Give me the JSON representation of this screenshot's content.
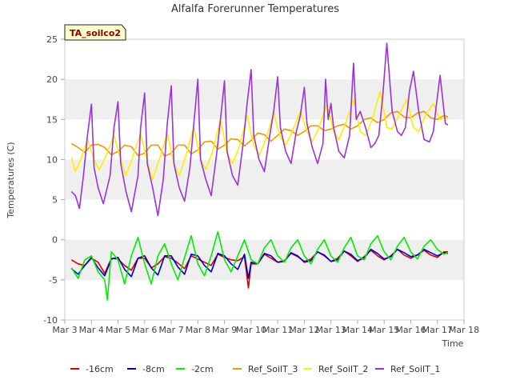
{
  "chart_data": {
    "type": "line",
    "title": "Alfalfa Forerunner Temperatures",
    "xlabel": "Time",
    "ylabel": "Temperatures (C)",
    "site_tag": "TA_soilco2",
    "xlim": [
      3,
      18
    ],
    "ylim": [
      -10,
      25
    ],
    "x_ticks": [
      3,
      4,
      5,
      6,
      7,
      8,
      9,
      10,
      11,
      12,
      13,
      14,
      15,
      16,
      17,
      18
    ],
    "x_tick_labels": [
      "Mar 3",
      "Mar 4",
      "Mar 5",
      "Mar 6",
      "Mar 7",
      "Mar 8",
      "Mar 9",
      "Mar 10",
      "Mar 11",
      "Mar 12",
      "Mar 13",
      "Mar 14",
      "Mar 15",
      "Mar 16",
      "Mar 17",
      "Mar 18"
    ],
    "y_ticks": [
      -10,
      -5,
      0,
      5,
      10,
      15,
      20,
      25
    ],
    "grid": "horizontal alternating bands",
    "legend_position": "bottom",
    "series": [
      {
        "name": "-16cm",
        "color": "#dd0000",
        "x": [
          3.25,
          3.5,
          3.75,
          4.0,
          4.25,
          4.5,
          4.75,
          5.0,
          5.25,
          5.5,
          5.75,
          6.0,
          6.25,
          6.5,
          6.75,
          7.0,
          7.25,
          7.5,
          7.75,
          8.0,
          8.25,
          8.5,
          8.75,
          9.0,
          9.25,
          9.5,
          9.75,
          9.9,
          10.0,
          10.25,
          10.5,
          10.75,
          11.0,
          11.25,
          11.5,
          11.75,
          12.0,
          12.25,
          12.5,
          12.75,
          13.0,
          13.25,
          13.5,
          13.75,
          14.0,
          14.25,
          14.5,
          14.75,
          15.0,
          15.25,
          15.5,
          15.75,
          16.0,
          16.25,
          16.5,
          16.75,
          17.0,
          17.25,
          17.4
        ],
        "y": [
          -2.5,
          -3.0,
          -3.2,
          -2.3,
          -2.8,
          -4.2,
          -2.3,
          -2.4,
          -3.2,
          -3.8,
          -2.3,
          -2.3,
          -3.5,
          -3.0,
          -2.1,
          -2.3,
          -2.9,
          -3.6,
          -2.0,
          -2.4,
          -2.8,
          -3.2,
          -1.8,
          -2.2,
          -2.5,
          -2.6,
          -2.1,
          -6.0,
          -3.0,
          -3.0,
          -1.8,
          -2.3,
          -2.8,
          -2.6,
          -1.7,
          -2.1,
          -2.7,
          -2.4,
          -1.5,
          -2.0,
          -2.7,
          -2.3,
          -1.4,
          -2.0,
          -2.7,
          -2.1,
          -1.3,
          -2.0,
          -2.5,
          -2.0,
          -1.2,
          -1.9,
          -2.3,
          -1.9,
          -1.3,
          -1.9,
          -2.2,
          -1.5,
          -1.5
        ]
      },
      {
        "name": "-8cm",
        "color": "#0000cc",
        "x": [
          3.25,
          3.5,
          3.75,
          4.0,
          4.25,
          4.5,
          4.75,
          5.0,
          5.25,
          5.5,
          5.75,
          6.0,
          6.25,
          6.5,
          6.75,
          7.0,
          7.25,
          7.5,
          7.75,
          8.0,
          8.25,
          8.5,
          8.75,
          9.0,
          9.25,
          9.5,
          9.75,
          9.9,
          10.0,
          10.25,
          10.5,
          10.75,
          11.0,
          11.25,
          11.5,
          11.75,
          12.0,
          12.25,
          12.5,
          12.75,
          13.0,
          13.25,
          13.5,
          13.75,
          14.0,
          14.25,
          14.5,
          14.75,
          15.0,
          15.25,
          15.5,
          15.75,
          16.0,
          16.25,
          16.5,
          16.75,
          17.0,
          17.25,
          17.4
        ],
        "y": [
          -3.6,
          -4.3,
          -3.2,
          -2.2,
          -3.5,
          -4.5,
          -2.4,
          -2.2,
          -3.7,
          -4.6,
          -2.3,
          -2.0,
          -3.5,
          -4.4,
          -2.0,
          -2.0,
          -3.4,
          -4.3,
          -1.8,
          -2.0,
          -3.2,
          -4.0,
          -1.7,
          -2.0,
          -3.0,
          -3.7,
          -1.8,
          -4.8,
          -2.8,
          -3.0,
          -1.7,
          -2.0,
          -2.8,
          -2.7,
          -1.6,
          -2.0,
          -2.8,
          -2.6,
          -1.5,
          -1.9,
          -2.7,
          -2.5,
          -1.4,
          -1.8,
          -2.6,
          -2.3,
          -1.2,
          -1.7,
          -2.4,
          -2.1,
          -1.2,
          -1.6,
          -2.1,
          -1.9,
          -1.2,
          -1.6,
          -2.0,
          -1.6,
          -1.7
        ]
      },
      {
        "name": "-2cm",
        "color": "#00ee00",
        "x": [
          3.25,
          3.5,
          3.75,
          4.0,
          4.25,
          4.5,
          4.6,
          4.75,
          5.0,
          5.25,
          5.5,
          5.75,
          6.0,
          6.25,
          6.5,
          6.75,
          7.0,
          7.25,
          7.5,
          7.75,
          8.0,
          8.25,
          8.5,
          8.75,
          9.0,
          9.25,
          9.5,
          9.75,
          10.0,
          10.25,
          10.5,
          10.75,
          11.0,
          11.25,
          11.5,
          11.75,
          12.0,
          12.25,
          12.5,
          12.75,
          13.0,
          13.25,
          13.5,
          13.75,
          14.0,
          14.25,
          14.5,
          14.75,
          15.0,
          15.25,
          15.5,
          15.75,
          16.0,
          16.25,
          16.5,
          16.75,
          17.0,
          17.25,
          17.4
        ],
        "y": [
          -3.5,
          -4.8,
          -2.5,
          -2.0,
          -4.0,
          -5.0,
          -7.5,
          -1.5,
          -2.5,
          -5.5,
          -2.0,
          0.3,
          -3.0,
          -5.5,
          -2.0,
          -0.5,
          -3.0,
          -5.0,
          -2.2,
          0.5,
          -3.0,
          -4.5,
          -2.0,
          1.0,
          -2.5,
          -4.0,
          -2.0,
          0.0,
          -2.5,
          -3.0,
          -1.0,
          0.0,
          -2.0,
          -2.8,
          -1.0,
          0.0,
          -2.0,
          -3.0,
          -1.2,
          0.0,
          -2.0,
          -2.8,
          -1.0,
          0.3,
          -2.0,
          -2.5,
          -0.5,
          0.5,
          -1.5,
          -2.5,
          -0.8,
          0.3,
          -1.5,
          -2.4,
          -0.8,
          0.0,
          -1.2,
          -1.8,
          -1.6
        ]
      },
      {
        "name": "Ref_SoilT_3",
        "color": "#ee9900",
        "x": [
          3.25,
          3.5,
          3.75,
          4.0,
          4.25,
          4.5,
          4.75,
          5.0,
          5.25,
          5.5,
          5.75,
          6.0,
          6.25,
          6.5,
          6.75,
          7.0,
          7.25,
          7.5,
          7.75,
          8.0,
          8.25,
          8.5,
          8.75,
          9.0,
          9.25,
          9.5,
          9.75,
          10.0,
          10.25,
          10.5,
          10.75,
          11.0,
          11.25,
          11.5,
          11.75,
          12.0,
          12.25,
          12.5,
          12.75,
          13.0,
          13.25,
          13.5,
          13.75,
          14.0,
          14.25,
          14.5,
          14.75,
          15.0,
          15.25,
          15.5,
          15.75,
          16.0,
          16.25,
          16.5,
          16.75,
          17.0,
          17.25,
          17.4
        ],
        "y": [
          12.0,
          11.5,
          10.9,
          11.8,
          11.9,
          11.5,
          10.6,
          11.0,
          11.8,
          11.6,
          10.5,
          10.8,
          11.8,
          11.8,
          10.4,
          10.8,
          11.8,
          11.8,
          10.7,
          11.2,
          12.2,
          12.3,
          11.3,
          11.8,
          12.6,
          12.5,
          11.7,
          12.4,
          13.3,
          13.1,
          12.3,
          13.0,
          13.8,
          13.6,
          13.0,
          13.5,
          14.2,
          14.2,
          13.6,
          13.8,
          14.2,
          14.4,
          13.8,
          14.2,
          15.0,
          15.2,
          14.6,
          15.0,
          15.8,
          16.0,
          15.3,
          15.2,
          15.8,
          16.0,
          15.2,
          15.0,
          15.5,
          15.3
        ]
      },
      {
        "name": "Ref_SoilT_2",
        "color": "#ffee00",
        "x": [
          3.25,
          3.4,
          3.6,
          3.85,
          4.1,
          4.3,
          4.55,
          4.85,
          5.1,
          5.3,
          5.55,
          5.85,
          6.1,
          6.3,
          6.55,
          6.85,
          7.1,
          7.3,
          7.55,
          7.85,
          8.1,
          8.3,
          8.55,
          8.85,
          9.1,
          9.3,
          9.55,
          9.85,
          10.1,
          10.3,
          10.55,
          10.85,
          11.1,
          11.3,
          11.55,
          11.85,
          12.1,
          12.3,
          12.55,
          12.85,
          13.1,
          13.3,
          13.55,
          13.85,
          14.1,
          14.3,
          14.55,
          14.85,
          15.1,
          15.3,
          15.55,
          15.85,
          16.1,
          16.3,
          16.55,
          16.85,
          17.1,
          17.3,
          17.4
        ],
        "y": [
          10.2,
          8.5,
          10.0,
          12.5,
          10.0,
          8.7,
          10.5,
          13.0,
          10.0,
          8.0,
          10.3,
          13.2,
          9.8,
          7.5,
          10.0,
          13.3,
          9.5,
          8.0,
          10.5,
          14.0,
          10.0,
          8.8,
          11.0,
          15.0,
          10.8,
          9.5,
          11.5,
          15.5,
          11.8,
          10.5,
          12.5,
          15.8,
          12.8,
          11.8,
          13.5,
          16.0,
          13.5,
          12.2,
          14.0,
          17.0,
          13.5,
          12.5,
          14.5,
          17.5,
          13.5,
          13.0,
          15.0,
          18.5,
          14.0,
          13.8,
          15.5,
          17.5,
          14.0,
          13.5,
          15.5,
          17.0,
          15.0,
          15.3,
          15.0
        ]
      },
      {
        "name": "Ref_SoilT_1",
        "color": "#9933dd",
        "x": [
          3.25,
          3.4,
          3.55,
          3.7,
          3.85,
          4.0,
          4.1,
          4.25,
          4.45,
          4.7,
          4.85,
          5.0,
          5.1,
          5.3,
          5.5,
          5.75,
          5.85,
          6.0,
          6.1,
          6.3,
          6.5,
          6.7,
          6.85,
          7.0,
          7.1,
          7.3,
          7.5,
          7.7,
          7.85,
          8.0,
          8.1,
          8.3,
          8.5,
          8.7,
          8.85,
          9.0,
          9.1,
          9.3,
          9.5,
          9.7,
          9.85,
          10.0,
          10.1,
          10.3,
          10.5,
          10.7,
          10.85,
          11.0,
          11.1,
          11.3,
          11.5,
          11.7,
          11.85,
          12.0,
          12.1,
          12.3,
          12.5,
          12.7,
          12.8,
          12.9,
          13.0,
          13.1,
          13.3,
          13.5,
          13.7,
          13.85,
          13.95,
          14.1,
          14.3,
          14.5,
          14.65,
          14.8,
          14.95,
          15.1,
          15.3,
          15.5,
          15.65,
          15.8,
          15.95,
          16.1,
          16.3,
          16.5,
          16.7,
          16.85,
          16.95,
          17.1,
          17.3,
          17.4
        ],
        "y": [
          6.0,
          5.5,
          3.9,
          8.0,
          13.0,
          16.9,
          9.0,
          6.5,
          4.5,
          8.0,
          14.0,
          17.2,
          9.5,
          6.0,
          3.5,
          8.0,
          14.0,
          18.3,
          9.5,
          6.5,
          3.0,
          7.5,
          14.5,
          19.2,
          9.5,
          6.5,
          4.8,
          9.0,
          14.5,
          20.0,
          10.0,
          7.5,
          5.5,
          10.5,
          15.0,
          19.8,
          11.0,
          8.0,
          6.8,
          12.0,
          17.0,
          21.2,
          13.0,
          10.0,
          8.5,
          13.0,
          16.0,
          20.3,
          14.0,
          11.0,
          9.5,
          13.5,
          15.5,
          19.0,
          14.5,
          11.5,
          9.5,
          12.0,
          20.0,
          15.0,
          17.0,
          14.0,
          11.0,
          10.2,
          13.0,
          22.0,
          15.0,
          16.0,
          14.0,
          11.5,
          12.0,
          13.0,
          18.0,
          24.5,
          16.0,
          13.5,
          13.0,
          14.0,
          18.5,
          21.0,
          16.0,
          12.5,
          12.2,
          13.5,
          16.5,
          20.5,
          14.5,
          14.3
        ]
      }
    ]
  }
}
